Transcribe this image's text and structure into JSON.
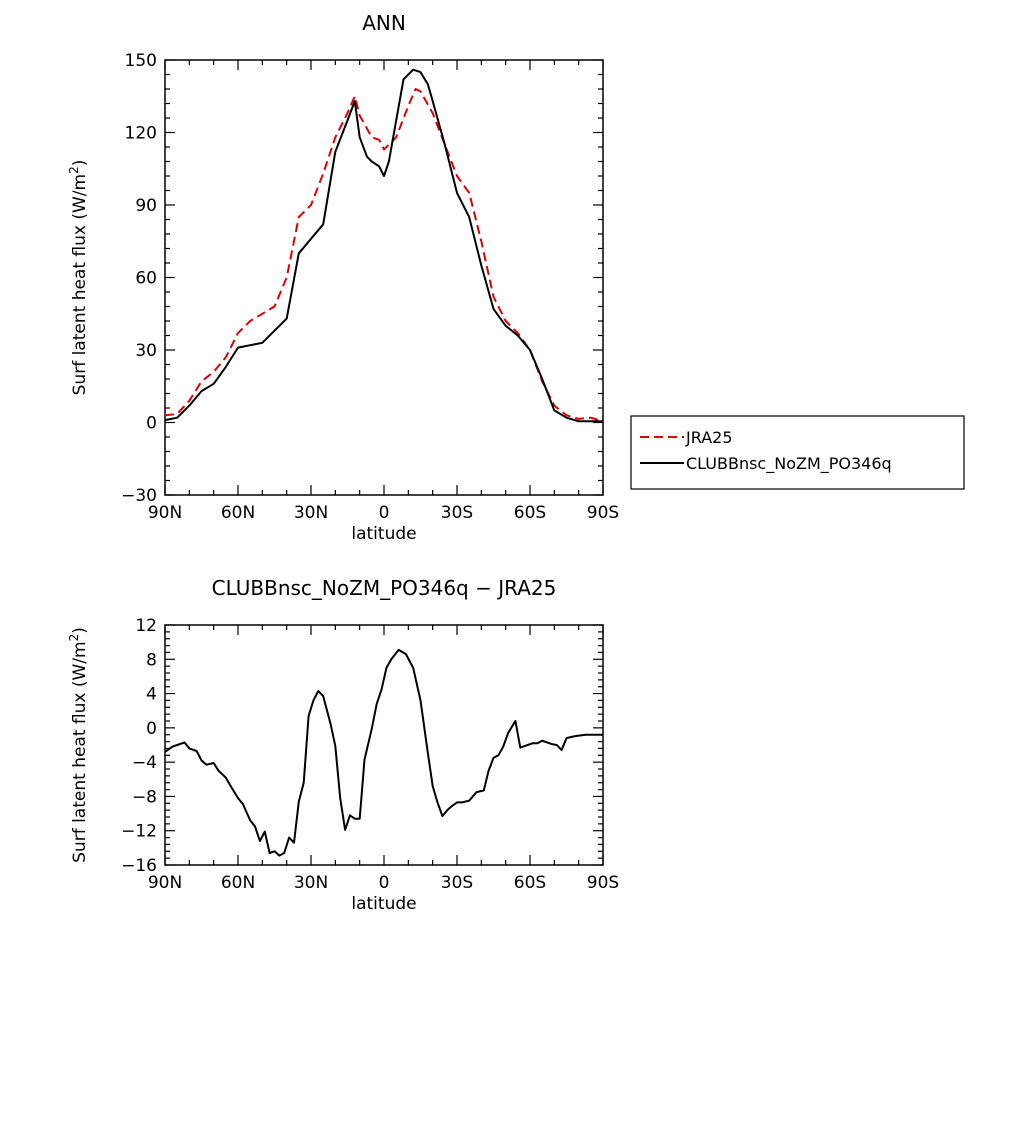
{
  "chart_data": [
    {
      "type": "line",
      "title": "ANN",
      "xlabel": "latitude",
      "ylabel": "Surf latent heat flux (W/m²)",
      "ylabel_main": "Surf latent heat flux (W/m",
      "ylabel_sup": "2",
      "ylabel_end": ")",
      "xlim": [
        90,
        -90
      ],
      "ylim": [
        -30,
        150
      ],
      "xticks": [
        90,
        60,
        30,
        0,
        -30,
        -60,
        -90
      ],
      "xtick_labels": [
        "90N",
        "60N",
        "30N",
        "0",
        "30S",
        "60S",
        "90S"
      ],
      "yticks": [
        -30,
        0,
        30,
        60,
        90,
        120,
        150
      ],
      "ytick_labels": [
        "−30",
        "0",
        "30",
        "60",
        "90",
        "120",
        "150"
      ],
      "legend_position": "right",
      "legend": [
        "JRA25",
        "CLUBBnsc_NoZM_PO346q"
      ],
      "series": [
        {
          "name": "JRA25",
          "color": "#e00000",
          "dash": true,
          "x": [
            90,
            85,
            80,
            75,
            70,
            65,
            60,
            55,
            50,
            45,
            40,
            35,
            30,
            25,
            20,
            15,
            12,
            10,
            5,
            2,
            0,
            -5,
            -10,
            -13,
            -15,
            -20,
            -25,
            -30,
            -35,
            -40,
            -45,
            -50,
            -55,
            -60,
            -65,
            -70,
            -75,
            -80,
            -85,
            -90
          ],
          "values": [
            3,
            3.5,
            9,
            17,
            21,
            27,
            37,
            42,
            45,
            48,
            60,
            85,
            90,
            103,
            118,
            128,
            135,
            127,
            118,
            117,
            113,
            118,
            131,
            138,
            137,
            128,
            115,
            102,
            95,
            75,
            52,
            42,
            37,
            30,
            17,
            7,
            3,
            1.5,
            2,
            0.5
          ]
        },
        {
          "name": "CLUBBnsc_NoZM_PO346q",
          "color": "#000000",
          "dash": false,
          "x": [
            90,
            85,
            80,
            75,
            70,
            65,
            60,
            55,
            50,
            45,
            40,
            35,
            30,
            25,
            20,
            15,
            12,
            10,
            7,
            5,
            2,
            0,
            -2,
            -5,
            -8,
            -12,
            -15,
            -18,
            -20,
            -25,
            -30,
            -35,
            -40,
            -45,
            -50,
            -55,
            -60,
            -65,
            -70,
            -75,
            -80,
            -85,
            -90
          ],
          "values": [
            1,
            2,
            7,
            13,
            16,
            23,
            31,
            32,
            33,
            38,
            43,
            70,
            76,
            82,
            112,
            125,
            133,
            118,
            110,
            108,
            106,
            102,
            108,
            125,
            142,
            146,
            145,
            140,
            133,
            115,
            95,
            85,
            65,
            47,
            40,
            36,
            30,
            18,
            5,
            2,
            0.5,
            0.5,
            0.5
          ]
        }
      ]
    },
    {
      "type": "line",
      "title": "CLUBBnsc_NoZM_PO346q − JRA25",
      "xlabel": "latitude",
      "ylabel": "Surf latent heat flux (W/m²)",
      "ylabel_main": "Surf latent heat flux (W/m",
      "ylabel_sup": "2",
      "ylabel_end": ")",
      "xlim": [
        90,
        -90
      ],
      "ylim": [
        -16,
        12
      ],
      "xticks": [
        90,
        60,
        30,
        0,
        -30,
        -60,
        -90
      ],
      "xtick_labels": [
        "90N",
        "60N",
        "30N",
        "0",
        "30S",
        "60S",
        "90S"
      ],
      "yticks": [
        -16,
        -12,
        -8,
        -4,
        0,
        4,
        8,
        12
      ],
      "ytick_labels": [
        "−16",
        "−12",
        "−8",
        "−4",
        "0",
        "4",
        "8",
        "12"
      ],
      "series": [
        {
          "color": "#000000",
          "dash": false,
          "x": [
            90,
            87,
            85,
            82,
            80,
            77,
            75,
            73,
            70,
            68,
            65,
            63,
            60,
            58,
            55,
            53,
            51,
            49,
            47,
            45,
            43,
            41,
            39,
            37,
            35,
            33,
            31,
            29,
            27,
            25,
            22,
            20,
            18,
            16,
            14,
            12,
            10,
            8,
            5,
            3,
            1,
            -1,
            -3,
            -6,
            -9,
            -12,
            -15,
            -18,
            -20,
            -22,
            -24,
            -26,
            -28,
            -30,
            -32,
            -35,
            -38,
            -41,
            -43,
            -45,
            -47,
            -49,
            -51,
            -54,
            -56,
            -58,
            -61,
            -63,
            -65,
            -67,
            -69,
            -71,
            -73,
            -75,
            -78,
            -80,
            -83,
            -85,
            -87,
            -90
          ],
          "values": [
            -2.8,
            -2.2,
            -2.0,
            -1.7,
            -2.4,
            -2.7,
            -3.8,
            -4.3,
            -4.1,
            -5.0,
            -5.8,
            -6.8,
            -8.2,
            -8.9,
            -10.8,
            -11.5,
            -13.2,
            -12.1,
            -14.6,
            -14.4,
            -14.9,
            -14.6,
            -12.8,
            -13.4,
            -8.6,
            -6.4,
            1.4,
            3.2,
            4.3,
            3.7,
            0.5,
            -2.1,
            -8.2,
            -11.9,
            -10.2,
            -10.6,
            -10.6,
            -3.7,
            -0.1,
            2.8,
            4.5,
            7.0,
            8.0,
            9.1,
            8.6,
            7.0,
            3.2,
            -2.9,
            -6.8,
            -8.7,
            -10.3,
            -9.6,
            -9.1,
            -8.7,
            -8.7,
            -8.5,
            -7.5,
            -7.3,
            -5.0,
            -3.5,
            -3.2,
            -2.2,
            -0.6,
            0.8,
            -2.3,
            -2.1,
            -1.8,
            -1.8,
            -1.5,
            -1.7,
            -1.9,
            -2.0,
            -2.6,
            -1.2,
            -1.0,
            -0.9,
            -0.8,
            -0.8,
            -0.8,
            -0.8
          ]
        }
      ]
    }
  ]
}
